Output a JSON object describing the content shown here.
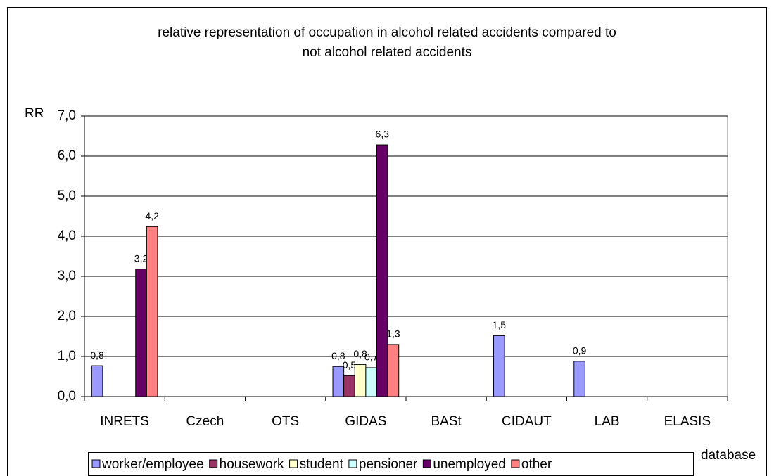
{
  "chart_data": {
    "type": "bar",
    "title": [
      "relative representation of occupation in alcohol related accidents compared to",
      "not alcohol related accidents"
    ],
    "y_label": "RR",
    "x_label": "database",
    "categories": [
      "INRETS",
      "Czech",
      "OTS",
      "GIDAS",
      "BASt",
      "CIDAUT",
      "LAB",
      "ELASIS"
    ],
    "series": [
      {
        "name": "worker/employee",
        "color": "#9999ff",
        "values": [
          0.77,
          null,
          null,
          0.75,
          null,
          1.52,
          0.88,
          null
        ],
        "value_labels": [
          "0,8",
          null,
          null,
          "0,8",
          null,
          "1,5",
          "0,9",
          null
        ]
      },
      {
        "name": "housework",
        "color": "#993366",
        "values": [
          null,
          null,
          null,
          0.52,
          null,
          null,
          null,
          null
        ],
        "value_labels": [
          null,
          null,
          null,
          "0,5",
          null,
          null,
          null,
          null
        ]
      },
      {
        "name": "student",
        "color": "#ffffcc",
        "values": [
          null,
          null,
          null,
          0.8,
          null,
          null,
          null,
          null
        ],
        "value_labels": [
          null,
          null,
          null,
          "0,8",
          null,
          null,
          null,
          null
        ]
      },
      {
        "name": "pensioner",
        "color": "#ccffff",
        "values": [
          null,
          null,
          null,
          0.72,
          null,
          null,
          null,
          null
        ],
        "value_labels": [
          null,
          null,
          null,
          "0,7",
          null,
          null,
          null,
          null
        ]
      },
      {
        "name": "unemployed",
        "color": "#660066",
        "values": [
          3.18,
          null,
          null,
          6.28,
          null,
          null,
          null,
          null
        ],
        "value_labels": [
          "3,2",
          null,
          null,
          "6,3",
          null,
          null,
          null,
          null
        ]
      },
      {
        "name": "other",
        "color": "#ff8080",
        "values": [
          4.24,
          null,
          null,
          1.3,
          null,
          null,
          null,
          null
        ],
        "value_labels": [
          "4,2",
          null,
          null,
          "1,3",
          null,
          null,
          null,
          null
        ]
      }
    ],
    "ylim": [
      0,
      7
    ],
    "yticks": [
      {
        "value": 0,
        "label": "0,0"
      },
      {
        "value": 1,
        "label": "1,0"
      },
      {
        "value": 2,
        "label": "2,0"
      },
      {
        "value": 3,
        "label": "3,0"
      },
      {
        "value": 4,
        "label": "4,0"
      },
      {
        "value": 5,
        "label": "5,0"
      },
      {
        "value": 6,
        "label": "6,0"
      },
      {
        "value": 7,
        "label": "7,0"
      }
    ],
    "grid": true,
    "legend": "bottom"
  }
}
